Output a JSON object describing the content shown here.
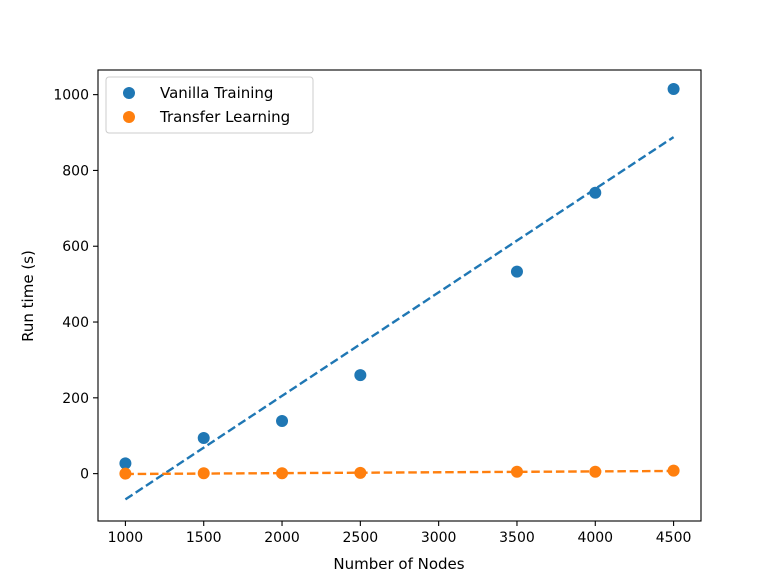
{
  "chart_data": {
    "type": "scatter",
    "title": "",
    "xlabel": "Number of Nodes",
    "ylabel": "Run time (s)",
    "xlim": [
      825,
      4675
    ],
    "ylim": [
      -125,
      1065
    ],
    "xticks": [
      1000,
      1500,
      2000,
      2500,
      3000,
      3500,
      4000,
      4500
    ],
    "yticks": [
      0,
      200,
      400,
      600,
      800,
      1000
    ],
    "grid": false,
    "legend_position": "top-left",
    "series": [
      {
        "name": "Vanilla Training",
        "color": "#1f77b4",
        "x": [
          1000,
          1500,
          2000,
          2500,
          3500,
          4000,
          4500
        ],
        "y": [
          27,
          94,
          139,
          260,
          533,
          741,
          1015
        ],
        "trendline": {
          "x": [
            1000,
            4500
          ],
          "y": [
            -68,
            888
          ]
        }
      },
      {
        "name": "Transfer Learning",
        "color": "#ff7f0e",
        "x": [
          1000,
          1500,
          2000,
          2500,
          3500,
          4000,
          4500
        ],
        "y": [
          0,
          1,
          1,
          2,
          5,
          5,
          8
        ],
        "trendline": {
          "x": [
            1000,
            4500
          ],
          "y": [
            -1,
            7
          ]
        }
      }
    ]
  }
}
